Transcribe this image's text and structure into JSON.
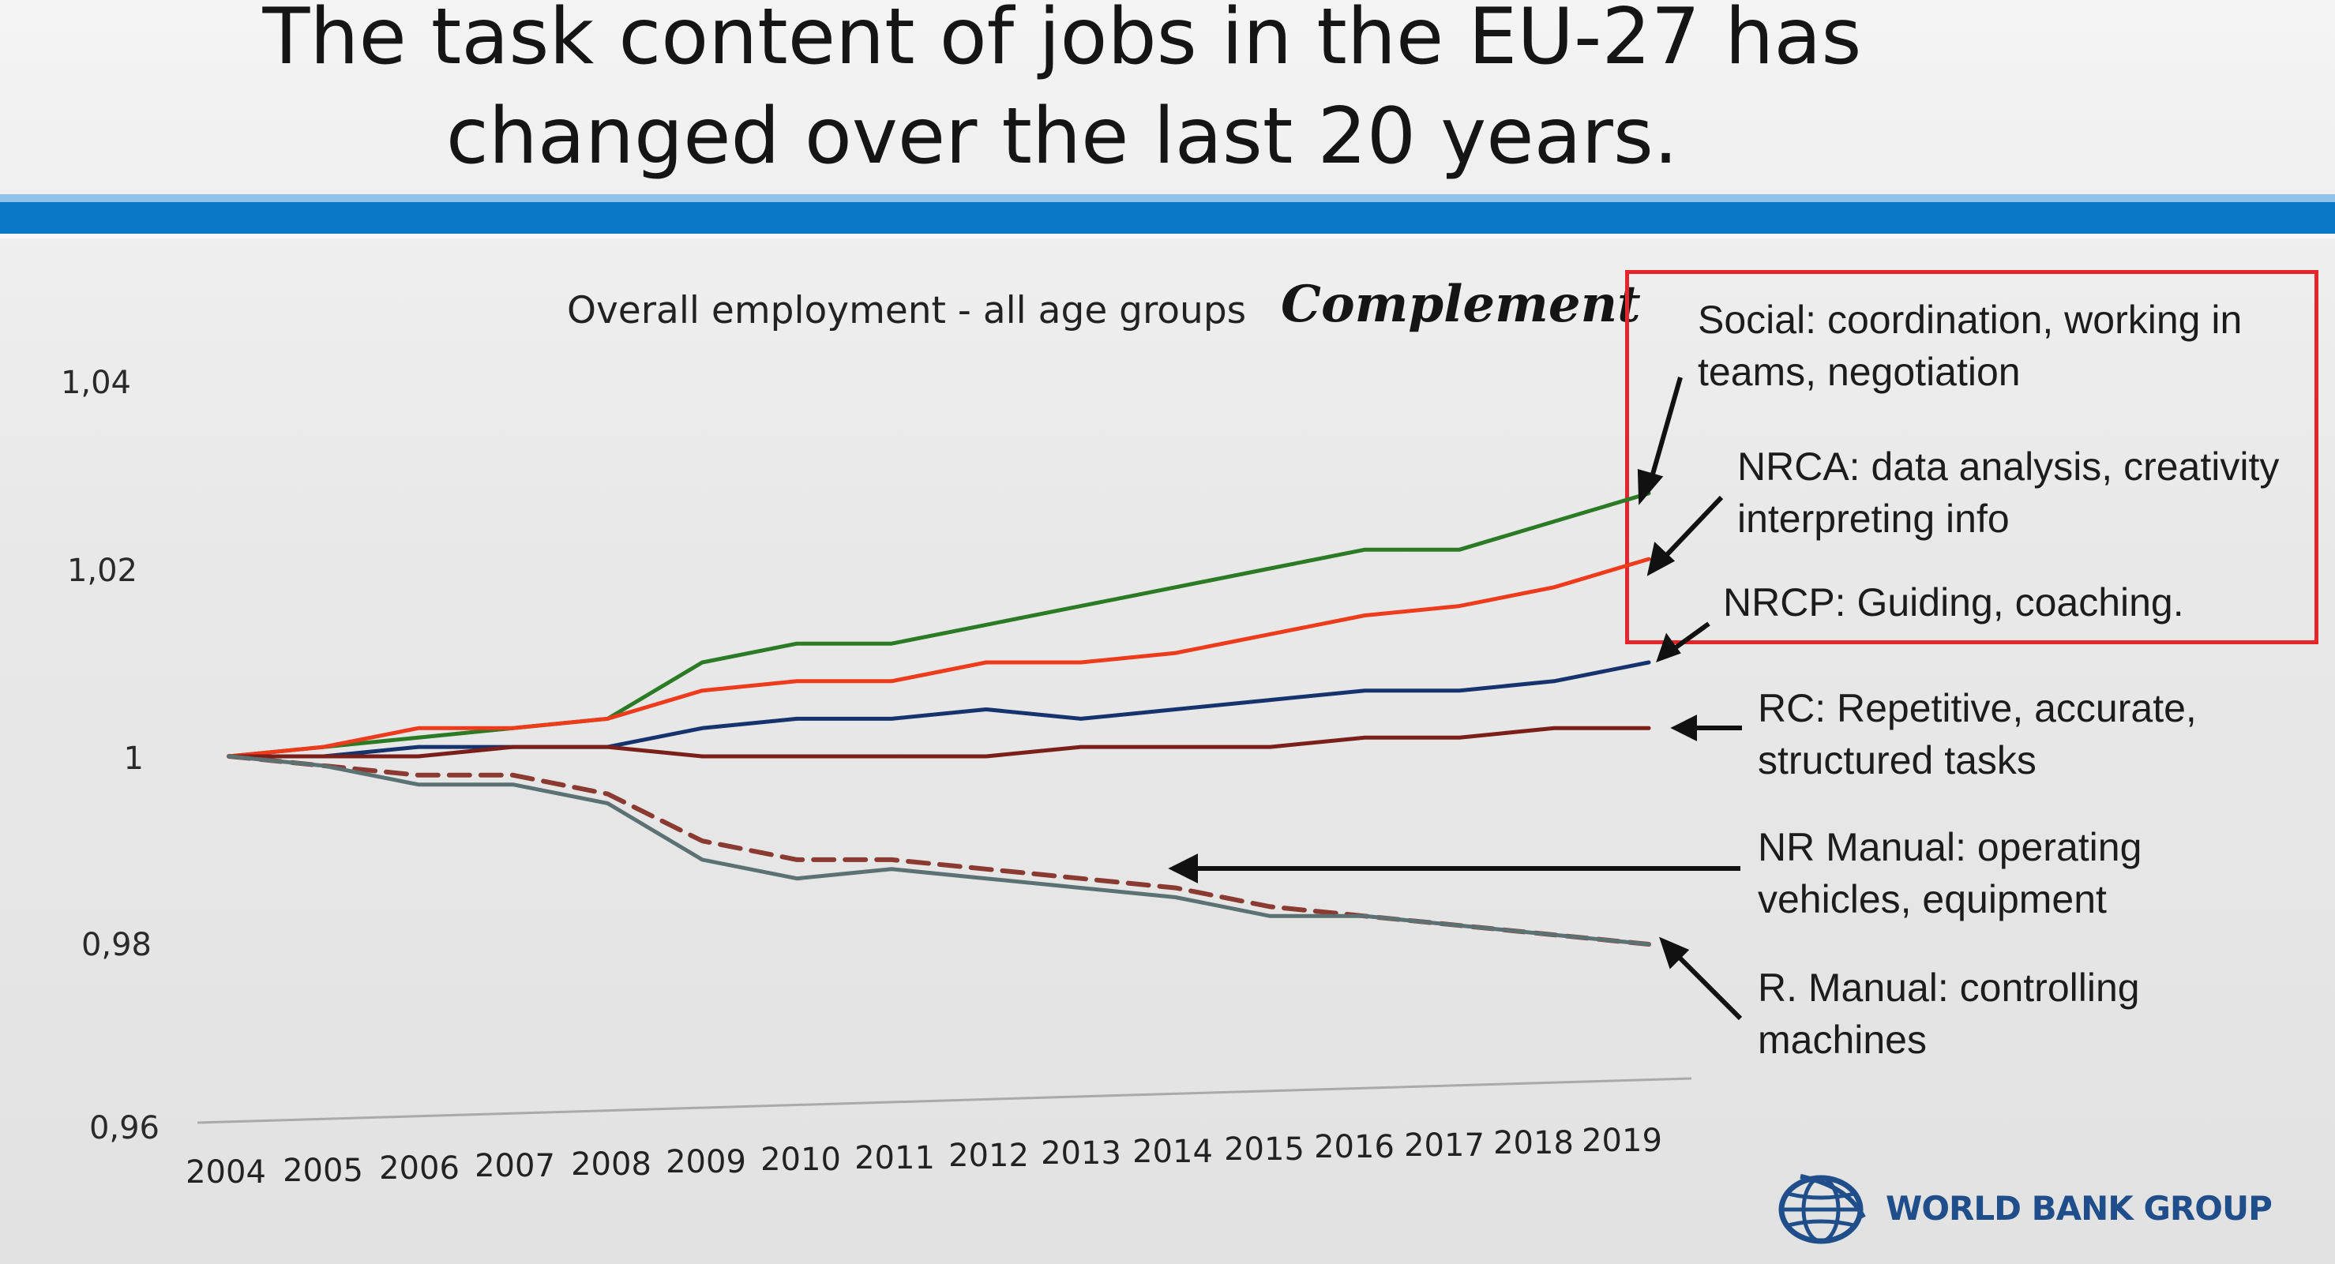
{
  "title": {
    "line1": "The task content of jobs in the EU-27 has",
    "line2": "changed over the last 20 years."
  },
  "chart_data": {
    "type": "line",
    "subtitle": "Overall employment - all age groups",
    "complement_heading": "Complement",
    "x": [
      2004,
      2005,
      2006,
      2007,
      2008,
      2009,
      2010,
      2011,
      2012,
      2013,
      2014,
      2015,
      2016,
      2017,
      2018,
      2019
    ],
    "x_tick_labels": [
      "2004",
      "2005",
      "2006",
      "2007",
      "2008",
      "2009",
      "2010",
      "2011",
      "2012",
      "2013",
      "2014",
      "2015",
      "2016",
      "2017",
      "2018",
      "2019"
    ],
    "y_tick_labels": [
      "1,04",
      "1,02",
      "1",
      "0,98",
      "0,96"
    ],
    "y_ticks": [
      1.04,
      1.02,
      1.0,
      0.98,
      0.96
    ],
    "ylim": [
      0.96,
      1.04
    ],
    "grid": false,
    "legend_placement": "right",
    "series": [
      {
        "label_lines": [
          "Social: coordination, working in",
          "teams, negotiation"
        ],
        "color": "#2b7a24",
        "dash": false,
        "values": [
          1.0,
          1.001,
          1.002,
          1.003,
          1.004,
          1.01,
          1.012,
          1.012,
          1.014,
          1.016,
          1.018,
          1.02,
          1.022,
          1.022,
          1.025,
          1.028
        ]
      },
      {
        "label_lines": [
          "NRCA: data analysis, creativity",
          "interpreting info"
        ],
        "color": "#ee3b1c",
        "dash": false,
        "values": [
          1.0,
          1.001,
          1.003,
          1.003,
          1.004,
          1.007,
          1.008,
          1.008,
          1.01,
          1.01,
          1.011,
          1.013,
          1.015,
          1.016,
          1.018,
          1.021
        ]
      },
      {
        "label_lines": [
          "NRCP: Guiding, coaching."
        ],
        "color": "#16336e",
        "dash": false,
        "values": [
          1.0,
          1.0,
          1.001,
          1.001,
          1.001,
          1.003,
          1.004,
          1.004,
          1.005,
          1.004,
          1.005,
          1.006,
          1.007,
          1.007,
          1.008,
          1.01
        ]
      },
      {
        "label_lines": [
          "RC: Repetitive, accurate,",
          "structured tasks"
        ],
        "color": "#7a1f1a",
        "dash": false,
        "values": [
          1.0,
          1.0,
          1.0,
          1.001,
          1.001,
          1.0,
          1.0,
          1.0,
          1.0,
          1.001,
          1.001,
          1.001,
          1.002,
          1.002,
          1.003,
          1.003
        ]
      },
      {
        "label_lines": [
          "NR Manual: operating",
          "vehicles, equipment"
        ],
        "color": "#8a3a30",
        "dash": true,
        "values": [
          1.0,
          0.999,
          0.998,
          0.998,
          0.996,
          0.991,
          0.989,
          0.989,
          0.988,
          0.987,
          0.986,
          0.984,
          0.983,
          0.982,
          0.981,
          0.98
        ]
      },
      {
        "label_lines": [
          "R. Manual: controlling",
          "machines"
        ],
        "color": "#5c7272",
        "dash": false,
        "values": [
          1.0,
          0.999,
          0.997,
          0.997,
          0.995,
          0.989,
          0.987,
          0.988,
          0.987,
          0.986,
          0.985,
          0.983,
          0.983,
          0.982,
          0.981,
          0.98
        ]
      }
    ]
  },
  "logo": {
    "name": "globe-icon",
    "text": "WORLD BANK GROUP",
    "color": "#1f4e8a"
  }
}
